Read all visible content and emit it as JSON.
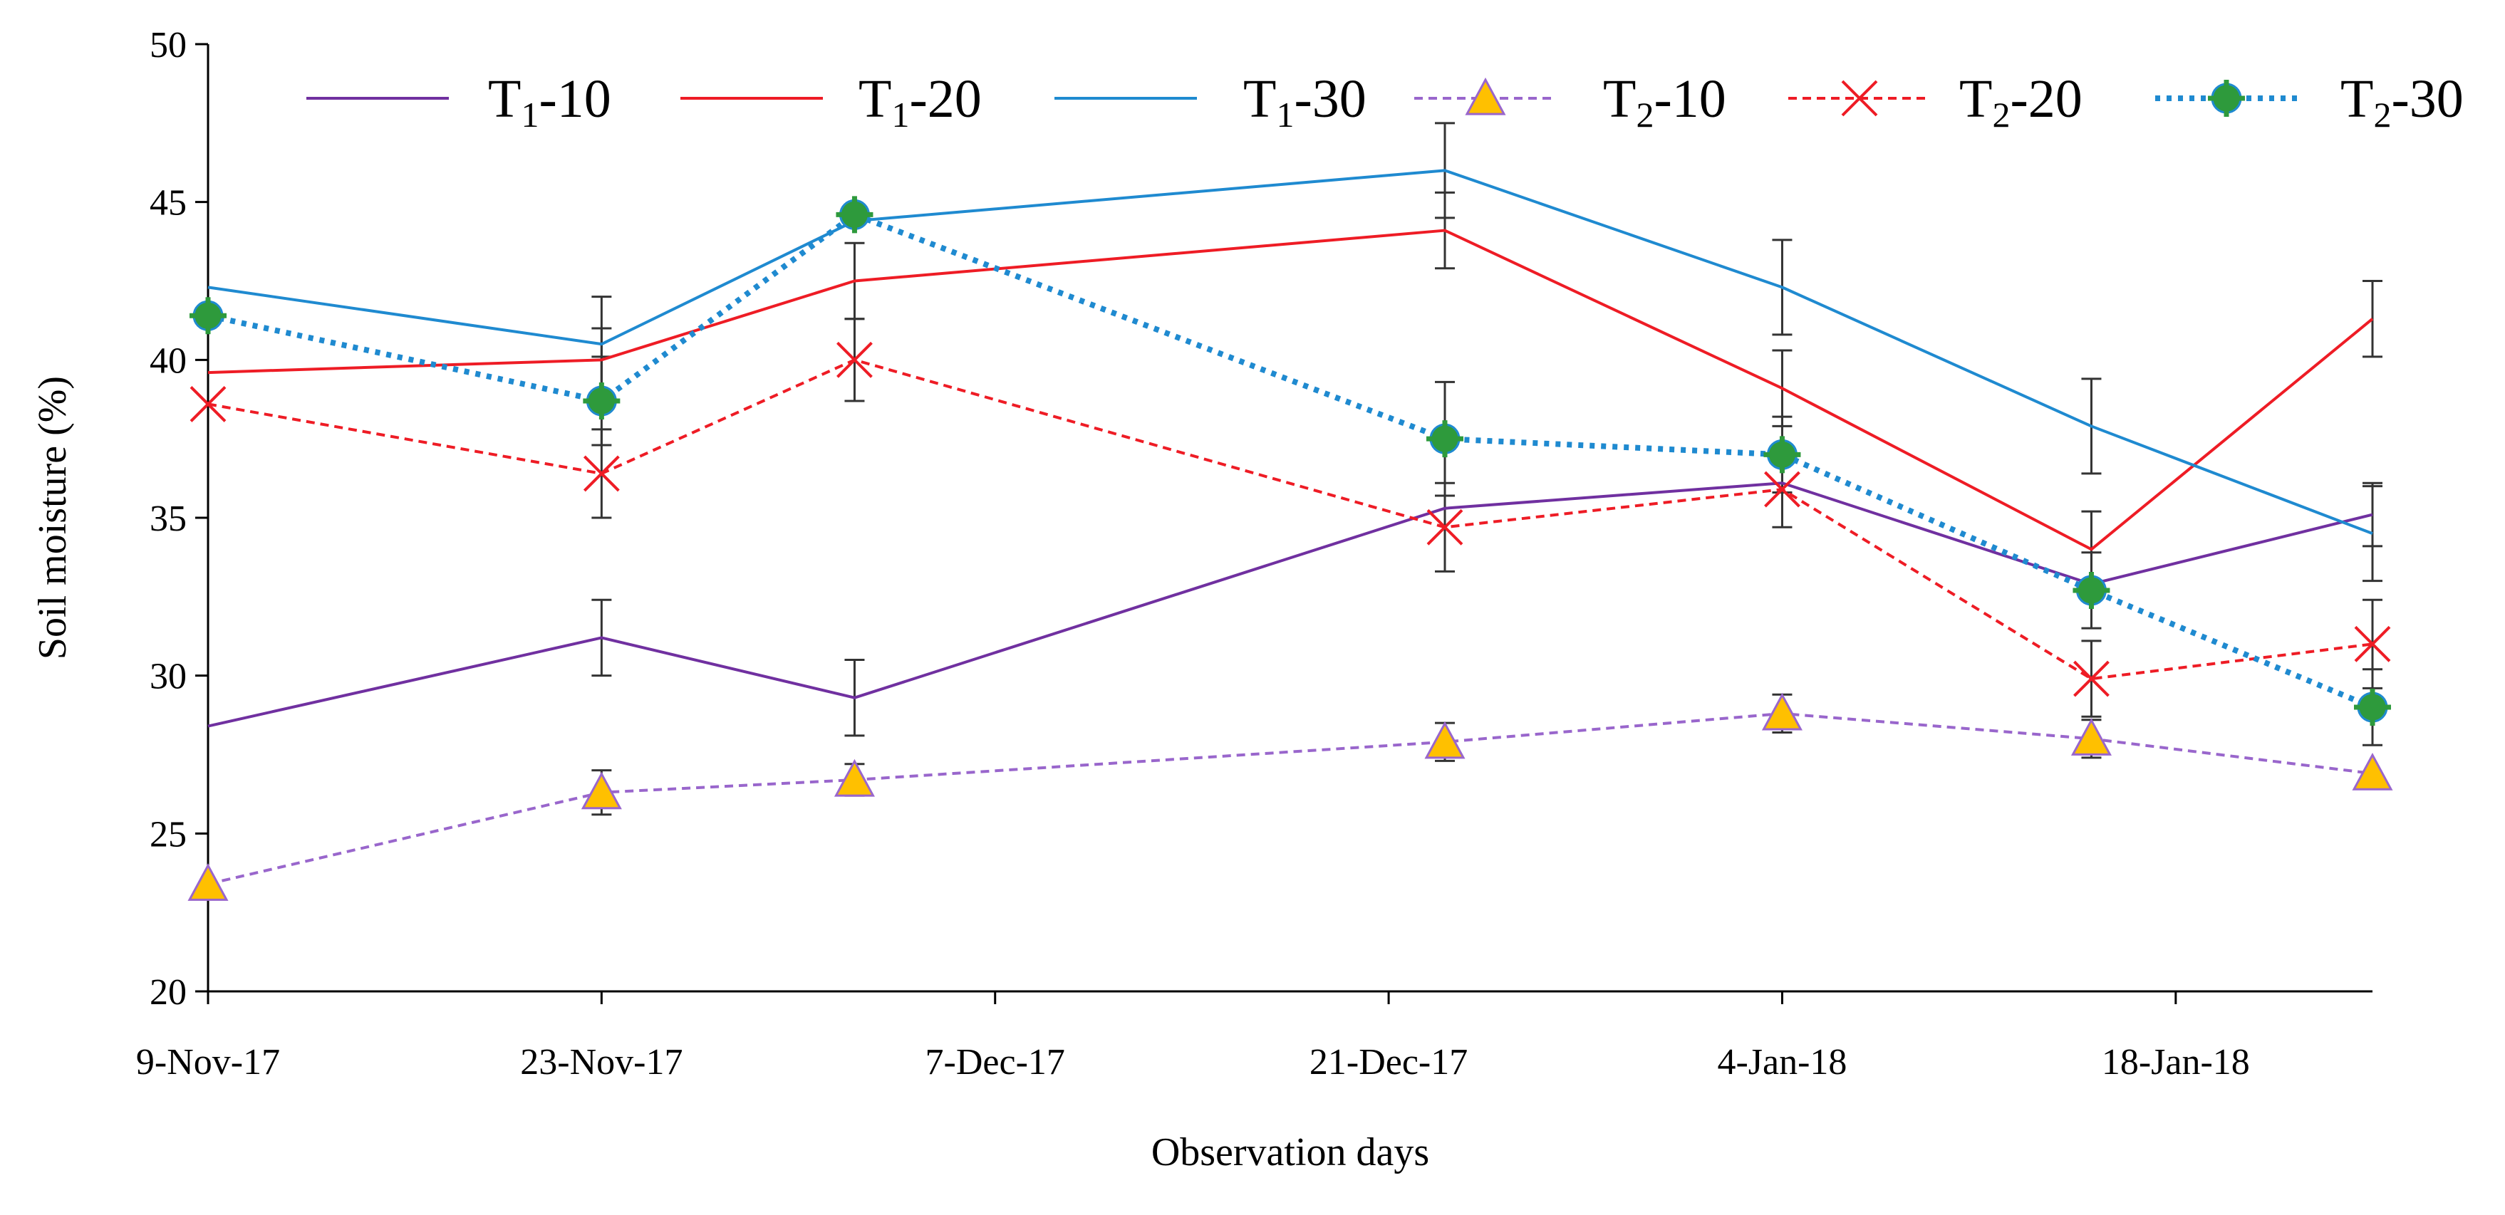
{
  "chart_data": {
    "type": "line",
    "title": "",
    "xlabel": "Observation days",
    "ylabel": "Soil moisture (%)",
    "ylim": [
      20,
      50
    ],
    "yticks": [
      20,
      25,
      30,
      35,
      40,
      45,
      50
    ],
    "xlim": [
      0,
      77
    ],
    "xticks": [
      {
        "day": 0,
        "label": "9-Nov-17"
      },
      {
        "day": 14,
        "label": "23-Nov-17"
      },
      {
        "day": 28,
        "label": "7-Dec-17"
      },
      {
        "day": 42,
        "label": "21-Dec-17"
      },
      {
        "day": 56,
        "label": "4-Jan-18"
      },
      {
        "day": 70,
        "label": "18-Jan-18"
      }
    ],
    "x": [
      0,
      14,
      23,
      44,
      56,
      67,
      77
    ],
    "legend_position": "top",
    "series": [
      {
        "name": "T1-10",
        "base": "T",
        "sub": "1",
        "suffix": "-10",
        "color": "#7030a0",
        "style": "solid",
        "marker": "none",
        "values": [
          28.4,
          31.2,
          29.3,
          35.3,
          36.1,
          32.9,
          35.1
        ],
        "errors": [
          0,
          1.2,
          1.2,
          0,
          0,
          0,
          1.0
        ]
      },
      {
        "name": "T1-20",
        "base": "T",
        "sub": "1",
        "suffix": "-20",
        "color": "#ee1c25",
        "style": "solid",
        "marker": "none",
        "values": [
          39.6,
          40.0,
          42.5,
          44.1,
          39.1,
          34.0,
          41.3
        ],
        "errors": [
          0,
          1.0,
          1.2,
          1.2,
          1.2,
          1.2,
          1.2
        ]
      },
      {
        "name": "T1-30",
        "base": "T",
        "sub": "1",
        "suffix": "-30",
        "color": "#1f8ad0",
        "style": "solid",
        "marker": "none",
        "values": [
          42.3,
          40.5,
          44.4,
          46.0,
          42.3,
          37.9,
          34.5
        ],
        "errors": [
          0,
          1.5,
          0,
          1.5,
          1.5,
          1.5,
          1.5
        ]
      },
      {
        "name": "T2-10",
        "base": "T",
        "sub": "2",
        "suffix": "-10",
        "color": "#9966cc",
        "style": "dashed",
        "marker": "triangle",
        "values": [
          23.4,
          26.3,
          26.7,
          27.9,
          28.8,
          28.0,
          26.9
        ],
        "errors": [
          0,
          0.7,
          0.5,
          0.6,
          0.6,
          0.6,
          0
        ]
      },
      {
        "name": "T2-20",
        "base": "T",
        "sub": "2",
        "suffix": "-20",
        "color": "#ee1c25",
        "style": "dashed",
        "marker": "x",
        "values": [
          38.6,
          36.4,
          40.0,
          34.7,
          35.9,
          29.9,
          31.0
        ],
        "errors": [
          0,
          1.4,
          1.3,
          1.4,
          1.2,
          1.2,
          1.4
        ]
      },
      {
        "name": "T2-30",
        "base": "T",
        "sub": "2",
        "suffix": "-30",
        "color": "#1f8ad0",
        "style": "dotted",
        "marker": "plus",
        "values": [
          41.4,
          38.7,
          44.6,
          37.5,
          37.0,
          32.7,
          29.0
        ],
        "errors": [
          0,
          1.4,
          0,
          1.8,
          1.2,
          1.2,
          1.2
        ]
      }
    ]
  }
}
